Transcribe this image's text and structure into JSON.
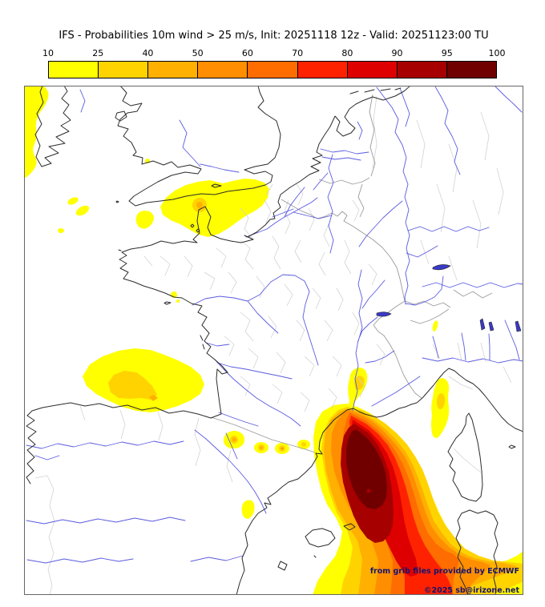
{
  "title": "IFS - Probabilities 10m wind > 25 m/s, Init: 20251118 12z - Valid: 20251123:00 TU",
  "colorbar": {
    "tick_labels": [
      "10",
      "25",
      "40",
      "50",
      "60",
      "70",
      "80",
      "90",
      "95",
      "100"
    ],
    "colors": [
      "#ffff00",
      "#ffd300",
      "#ffb000",
      "#ff8e00",
      "#ff6c00",
      "#ff2200",
      "#de0000",
      "#a60000",
      "#700000"
    ]
  },
  "map": {
    "attribution_line1": "from grib files provided by ECMWF",
    "attribution_line2": "©2025 sb@irizone.net",
    "colors": {
      "coastline": "#2b2b2b",
      "country_border": "#9a9a9a",
      "admin_boundary": "#d2d2d2",
      "river": "#5a5ae0",
      "lake": "#3a3ac8",
      "attribution_text": "#14146e"
    }
  }
}
